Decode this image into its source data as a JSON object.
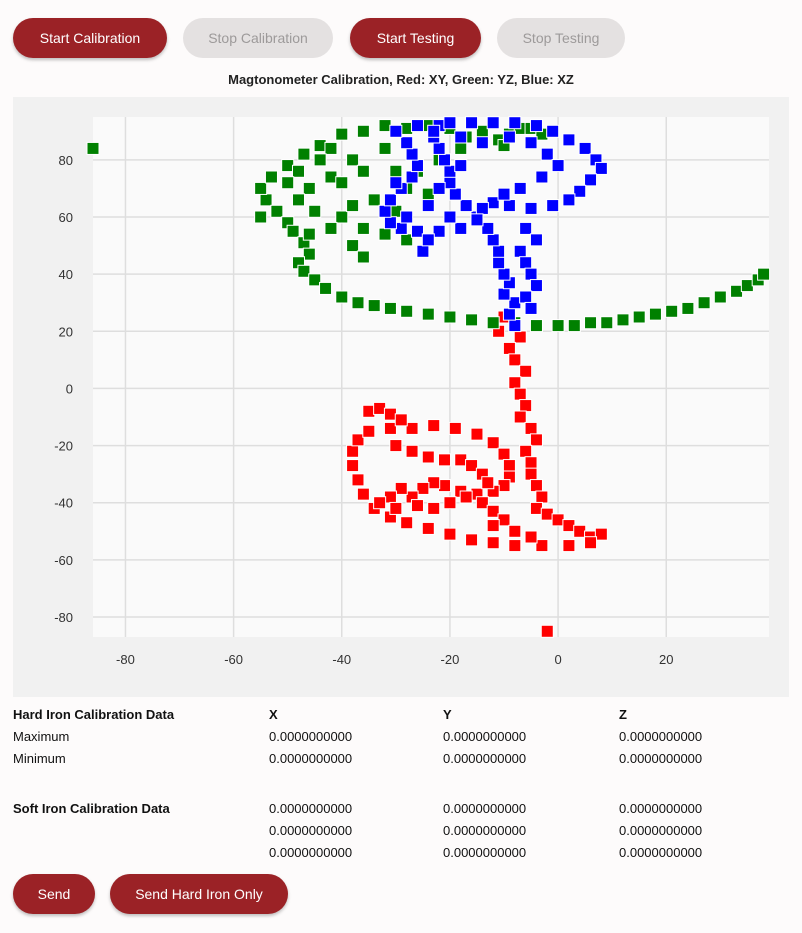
{
  "toolbar": {
    "start_calibration": "Start Calibration",
    "stop_calibration": "Stop Calibration",
    "start_testing": "Start Testing",
    "stop_testing": "Stop Testing"
  },
  "colors": {
    "accent": "#9b2226",
    "red": "#ff0000",
    "green": "#008000",
    "blue": "#0000ff"
  },
  "chart_data": {
    "type": "scatter",
    "title": "Magtonometer Calibration, Red: XY, Green: YZ, Blue: XZ",
    "xlabel": "",
    "ylabel": "",
    "xlim": [
      -86,
      39
    ],
    "ylim": [
      -87,
      95
    ],
    "xticks": [
      -80,
      -60,
      -40,
      -20,
      0,
      20
    ],
    "yticks": [
      80,
      60,
      40,
      20,
      0,
      -20,
      -40,
      -60,
      -80
    ],
    "grid": true,
    "series": [
      {
        "color": "#ff0000",
        "points": [
          [
            -2,
            -85
          ],
          [
            -8,
            22
          ],
          [
            -7,
            18
          ],
          [
            -9,
            14
          ],
          [
            -8,
            10
          ],
          [
            -6,
            6
          ],
          [
            -8,
            2
          ],
          [
            -7,
            -2
          ],
          [
            -6,
            -6
          ],
          [
            -7,
            -10
          ],
          [
            -5,
            -14
          ],
          [
            -4,
            -18
          ],
          [
            -6,
            -22
          ],
          [
            -5,
            -26
          ],
          [
            -5,
            -30
          ],
          [
            -4,
            -34
          ],
          [
            -3,
            -38
          ],
          [
            -4,
            -42
          ],
          [
            -2,
            -44
          ],
          [
            0,
            -46
          ],
          [
            2,
            -48
          ],
          [
            4,
            -50
          ],
          [
            6,
            -52
          ],
          [
            8,
            -51
          ],
          [
            6,
            -54
          ],
          [
            2,
            -55
          ],
          [
            -3,
            -55
          ],
          [
            -8,
            -55
          ],
          [
            -12,
            -54
          ],
          [
            -16,
            -53
          ],
          [
            -20,
            -51
          ],
          [
            -24,
            -49
          ],
          [
            -28,
            -47
          ],
          [
            -31,
            -45
          ],
          [
            -34,
            -42
          ],
          [
            -36,
            -37
          ],
          [
            -37,
            -32
          ],
          [
            -38,
            -27
          ],
          [
            -38,
            -22
          ],
          [
            -37,
            -18
          ],
          [
            -35,
            -15
          ],
          [
            -31,
            -14
          ],
          [
            -27,
            -14
          ],
          [
            -23,
            -13
          ],
          [
            -19,
            -14
          ],
          [
            -15,
            -16
          ],
          [
            -12,
            -19
          ],
          [
            -10,
            -23
          ],
          [
            -9,
            -27
          ],
          [
            -9,
            -31
          ],
          [
            -10,
            -34
          ],
          [
            -12,
            -36
          ],
          [
            -15,
            -37
          ],
          [
            -18,
            -36
          ],
          [
            -21,
            -34
          ],
          [
            -23,
            -33
          ],
          [
            -25,
            -35
          ],
          [
            -27,
            -38
          ],
          [
            -26,
            -41
          ],
          [
            -23,
            -42
          ],
          [
            -20,
            -40
          ],
          [
            -17,
            -38
          ],
          [
            -14,
            -40
          ],
          [
            -12,
            -43
          ],
          [
            -10,
            -46
          ],
          [
            -35,
            -8
          ],
          [
            -33,
            -7
          ],
          [
            -31,
            -9
          ],
          [
            -29,
            -11
          ],
          [
            -30,
            -20
          ],
          [
            -27,
            -22
          ],
          [
            -24,
            -24
          ],
          [
            -21,
            -25
          ],
          [
            -18,
            -25
          ],
          [
            -16,
            -27
          ],
          [
            -14,
            -30
          ],
          [
            -13,
            -33
          ],
          [
            -29,
            -35
          ],
          [
            -31,
            -38
          ],
          [
            -33,
            -40
          ],
          [
            -30,
            -42
          ],
          [
            -8,
            -50
          ],
          [
            -5,
            -52
          ],
          [
            -12,
            -48
          ],
          [
            -11,
            20
          ],
          [
            -10,
            25
          ]
        ]
      },
      {
        "color": "#008000",
        "points": [
          [
            -86,
            84
          ],
          [
            -55,
            60
          ],
          [
            -54,
            66
          ],
          [
            -55,
            70
          ],
          [
            -53,
            74
          ],
          [
            -50,
            78
          ],
          [
            -47,
            82
          ],
          [
            -44,
            85
          ],
          [
            -40,
            89
          ],
          [
            -36,
            90
          ],
          [
            -32,
            92
          ],
          [
            -28,
            91
          ],
          [
            -24,
            92
          ],
          [
            -20,
            91
          ],
          [
            -17,
            88
          ],
          [
            -14,
            86
          ],
          [
            -11,
            87
          ],
          [
            -9,
            89
          ],
          [
            -7,
            91
          ],
          [
            -5,
            91
          ],
          [
            -3,
            89
          ],
          [
            -52,
            62
          ],
          [
            -50,
            58
          ],
          [
            -49,
            55
          ],
          [
            -47,
            51
          ],
          [
            -46,
            47
          ],
          [
            -48,
            44
          ],
          [
            -47,
            41
          ],
          [
            -45,
            38
          ],
          [
            -43,
            35
          ],
          [
            -40,
            32
          ],
          [
            -37,
            30
          ],
          [
            -34,
            29
          ],
          [
            -31,
            28
          ],
          [
            -28,
            27
          ],
          [
            -24,
            26
          ],
          [
            -20,
            25
          ],
          [
            -16,
            24
          ],
          [
            -12,
            23
          ],
          [
            -8,
            23
          ],
          [
            -4,
            22
          ],
          [
            0,
            22
          ],
          [
            3,
            22
          ],
          [
            6,
            23
          ],
          [
            9,
            23
          ],
          [
            12,
            24
          ],
          [
            15,
            25
          ],
          [
            18,
            26
          ],
          [
            21,
            27
          ],
          [
            24,
            28
          ],
          [
            27,
            30
          ],
          [
            30,
            32
          ],
          [
            33,
            34
          ],
          [
            35,
            36
          ],
          [
            37,
            38
          ],
          [
            38,
            40
          ],
          [
            -42,
            84
          ],
          [
            -38,
            80
          ],
          [
            -36,
            76
          ],
          [
            -42,
            74
          ],
          [
            -46,
            70
          ],
          [
            -48,
            66
          ],
          [
            -45,
            62
          ],
          [
            -40,
            60
          ],
          [
            -36,
            56
          ],
          [
            -32,
            54
          ],
          [
            -28,
            52
          ],
          [
            -38,
            50
          ],
          [
            -36,
            46
          ],
          [
            -44,
            80
          ],
          [
            -40,
            72
          ],
          [
            -34,
            66
          ],
          [
            -30,
            62
          ],
          [
            -28,
            70
          ],
          [
            -26,
            76
          ],
          [
            -22,
            80
          ],
          [
            -18,
            84
          ],
          [
            -20,
            75
          ],
          [
            -24,
            68
          ],
          [
            -30,
            76
          ],
          [
            -32,
            84
          ],
          [
            -48,
            76
          ],
          [
            -50,
            72
          ],
          [
            -38,
            64
          ],
          [
            -42,
            56
          ],
          [
            -46,
            54
          ],
          [
            -28,
            86
          ],
          [
            -14,
            90
          ],
          [
            -10,
            85
          ]
        ]
      },
      {
        "color": "#0000ff",
        "points": [
          [
            -8,
            22
          ],
          [
            -9,
            26
          ],
          [
            -8,
            30
          ],
          [
            -10,
            33
          ],
          [
            -9,
            37
          ],
          [
            -10,
            40
          ],
          [
            -11,
            44
          ],
          [
            -11,
            48
          ],
          [
            -12,
            52
          ],
          [
            -13,
            56
          ],
          [
            -15,
            60
          ],
          [
            -17,
            64
          ],
          [
            -19,
            68
          ],
          [
            -20,
            72
          ],
          [
            -20,
            76
          ],
          [
            -21,
            80
          ],
          [
            -22,
            84
          ],
          [
            -23,
            88
          ],
          [
            -22,
            92
          ],
          [
            -20,
            93
          ],
          [
            -16,
            93
          ],
          [
            -12,
            93
          ],
          [
            -8,
            93
          ],
          [
            -4,
            92
          ],
          [
            -1,
            90
          ],
          [
            2,
            87
          ],
          [
            5,
            84
          ],
          [
            7,
            80
          ],
          [
            8,
            77
          ],
          [
            6,
            73
          ],
          [
            4,
            69
          ],
          [
            2,
            66
          ],
          [
            -1,
            64
          ],
          [
            -5,
            63
          ],
          [
            -9,
            64
          ],
          [
            -12,
            65
          ],
          [
            -14,
            63
          ],
          [
            -15,
            59
          ],
          [
            -18,
            56
          ],
          [
            -22,
            55
          ],
          [
            -26,
            55
          ],
          [
            -29,
            56
          ],
          [
            -31,
            58
          ],
          [
            -32,
            62
          ],
          [
            -31,
            66
          ],
          [
            -29,
            70
          ],
          [
            -27,
            74
          ],
          [
            -26,
            78
          ],
          [
            -27,
            82
          ],
          [
            -28,
            86
          ],
          [
            -30,
            90
          ],
          [
            -26,
            92
          ],
          [
            -23,
            90
          ],
          [
            -18,
            88
          ],
          [
            -14,
            86
          ],
          [
            -9,
            88
          ],
          [
            -5,
            86
          ],
          [
            -2,
            82
          ],
          [
            0,
            78
          ],
          [
            -3,
            74
          ],
          [
            -7,
            70
          ],
          [
            -10,
            68
          ],
          [
            -6,
            56
          ],
          [
            -4,
            52
          ],
          [
            -7,
            48
          ],
          [
            -6,
            44
          ],
          [
            -5,
            40
          ],
          [
            -4,
            36
          ],
          [
            -6,
            32
          ],
          [
            -5,
            28
          ],
          [
            -25,
            48
          ],
          [
            -24,
            52
          ],
          [
            -28,
            60
          ],
          [
            -24,
            64
          ],
          [
            -20,
            60
          ],
          [
            -22,
            70
          ],
          [
            -18,
            78
          ],
          [
            -30,
            72
          ]
        ]
      }
    ]
  },
  "hard_iron": {
    "heading": "Hard Iron Calibration Data",
    "col_x": "X",
    "col_y": "Y",
    "col_z": "Z",
    "rows": [
      {
        "label": "Maximum",
        "x": "0.0000000000",
        "y": "0.0000000000",
        "z": "0.0000000000"
      },
      {
        "label": "Minimum",
        "x": "0.0000000000",
        "y": "0.0000000000",
        "z": "0.0000000000"
      }
    ]
  },
  "soft_iron": {
    "heading": "Soft Iron Calibration Data",
    "rows": [
      {
        "x": "0.0000000000",
        "y": "0.0000000000",
        "z": "0.0000000000"
      },
      {
        "x": "0.0000000000",
        "y": "0.0000000000",
        "z": "0.0000000000"
      },
      {
        "x": "0.0000000000",
        "y": "0.0000000000",
        "z": "0.0000000000"
      }
    ]
  },
  "footer": {
    "send": "Send",
    "send_hard_iron": "Send Hard Iron Only"
  }
}
